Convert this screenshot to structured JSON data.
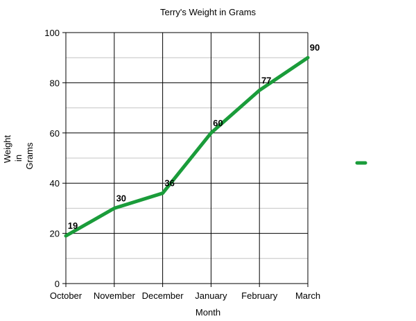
{
  "chart_data": {
    "type": "line",
    "title": "Terry's Weight in Grams",
    "xlabel": "Month",
    "ylabel_lines": [
      "Weight",
      "in",
      "Grams"
    ],
    "categories": [
      "October",
      "November",
      "December",
      "January",
      "February",
      "March"
    ],
    "series": [
      {
        "values": [
          19,
          30,
          36,
          60,
          77,
          90
        ],
        "color": "#1a9c3a"
      }
    ],
    "ylim": [
      0,
      100
    ],
    "y_major_ticks": [
      0,
      20,
      40,
      60,
      80,
      100
    ],
    "y_minor_ticks": [
      10,
      30,
      50,
      70,
      90
    ],
    "data_labels": [
      "19",
      "30",
      "36",
      "60",
      "77",
      "90"
    ],
    "grid": true,
    "legend": "right"
  }
}
